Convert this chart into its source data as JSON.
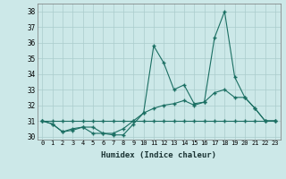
{
  "xlabel": "Humidex (Indice chaleur)",
  "xlim": [
    -0.5,
    23.5
  ],
  "ylim": [
    29.8,
    38.5
  ],
  "yticks": [
    30,
    31,
    32,
    33,
    34,
    35,
    36,
    37,
    38
  ],
  "xticks": [
    0,
    1,
    2,
    3,
    4,
    5,
    6,
    7,
    8,
    9,
    10,
    11,
    12,
    13,
    14,
    15,
    16,
    17,
    18,
    19,
    20,
    21,
    22,
    23
  ],
  "bg_color": "#cce8e8",
  "grid_color": "#aacccc",
  "line_color": "#1a6e62",
  "line1_x": [
    0,
    1,
    2,
    3,
    4,
    5,
    6,
    7,
    8,
    9,
    10,
    11,
    12,
    13,
    14,
    15,
    16,
    17,
    18,
    19,
    20,
    21,
    22,
    23
  ],
  "line1_y": [
    31.0,
    30.8,
    30.3,
    30.5,
    30.6,
    30.2,
    30.2,
    30.1,
    30.1,
    30.8,
    31.5,
    35.8,
    34.7,
    33.0,
    33.3,
    32.1,
    32.2,
    36.3,
    38.0,
    33.8,
    32.5,
    31.8,
    31.0,
    31.0
  ],
  "line2_x": [
    0,
    1,
    2,
    3,
    4,
    5,
    6,
    7,
    8,
    9,
    10,
    11,
    12,
    13,
    14,
    15,
    16,
    17,
    18,
    19,
    20,
    21,
    22,
    23
  ],
  "line2_y": [
    31.0,
    30.8,
    30.3,
    30.4,
    30.6,
    30.6,
    30.2,
    30.2,
    30.5,
    31.0,
    31.5,
    31.8,
    32.0,
    32.1,
    32.3,
    32.0,
    32.2,
    32.8,
    33.0,
    32.5,
    32.5,
    31.8,
    31.0,
    31.0
  ],
  "line3_x": [
    0,
    1,
    2,
    3,
    4,
    5,
    6,
    7,
    8,
    9,
    10,
    11,
    12,
    13,
    14,
    15,
    16,
    17,
    18,
    19,
    20,
    21,
    22,
    23
  ],
  "line3_y": [
    31.0,
    31.0,
    31.0,
    31.0,
    31.0,
    31.0,
    31.0,
    31.0,
    31.0,
    31.0,
    31.0,
    31.0,
    31.0,
    31.0,
    31.0,
    31.0,
    31.0,
    31.0,
    31.0,
    31.0,
    31.0,
    31.0,
    31.0,
    31.0
  ]
}
